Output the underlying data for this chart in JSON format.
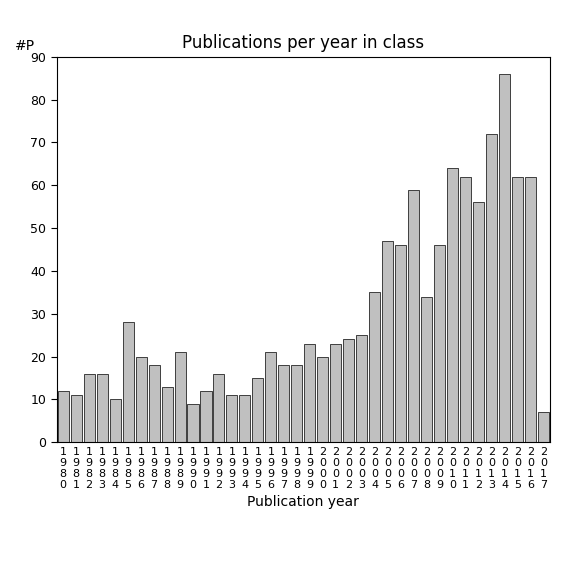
{
  "title": "Publications per year in class",
  "xlabel": "Publication year",
  "ylabel": "#P",
  "years": [
    "1980",
    "1981",
    "1982",
    "1983",
    "1984",
    "1985",
    "1986",
    "1987",
    "1988",
    "1989",
    "1990",
    "1991",
    "1992",
    "1993",
    "1994",
    "1995",
    "1996",
    "1997",
    "1998",
    "1999",
    "2000",
    "2001",
    "2002",
    "2003",
    "2004",
    "2005",
    "2006",
    "2007",
    "2008",
    "2009",
    "2010",
    "2011",
    "2012",
    "2013",
    "2014",
    "2015",
    "2016",
    "2017"
  ],
  "values": [
    12,
    11,
    16,
    16,
    10,
    28,
    20,
    18,
    13,
    21,
    9,
    12,
    16,
    11,
    11,
    15,
    21,
    18,
    18,
    23,
    20,
    23,
    24,
    25,
    35,
    47,
    46,
    59,
    34,
    46,
    64,
    62,
    56,
    72,
    86,
    62,
    62,
    7
  ],
  "bar_color": "#c0c0c0",
  "bar_edge_color": "#000000",
  "ylim": [
    0,
    90
  ],
  "yticks": [
    0,
    10,
    20,
    30,
    40,
    50,
    60,
    70,
    80,
    90
  ],
  "title_fontsize": 12,
  "axis_label_fontsize": 10,
  "tick_fontsize": 9,
  "background_color": "#ffffff"
}
